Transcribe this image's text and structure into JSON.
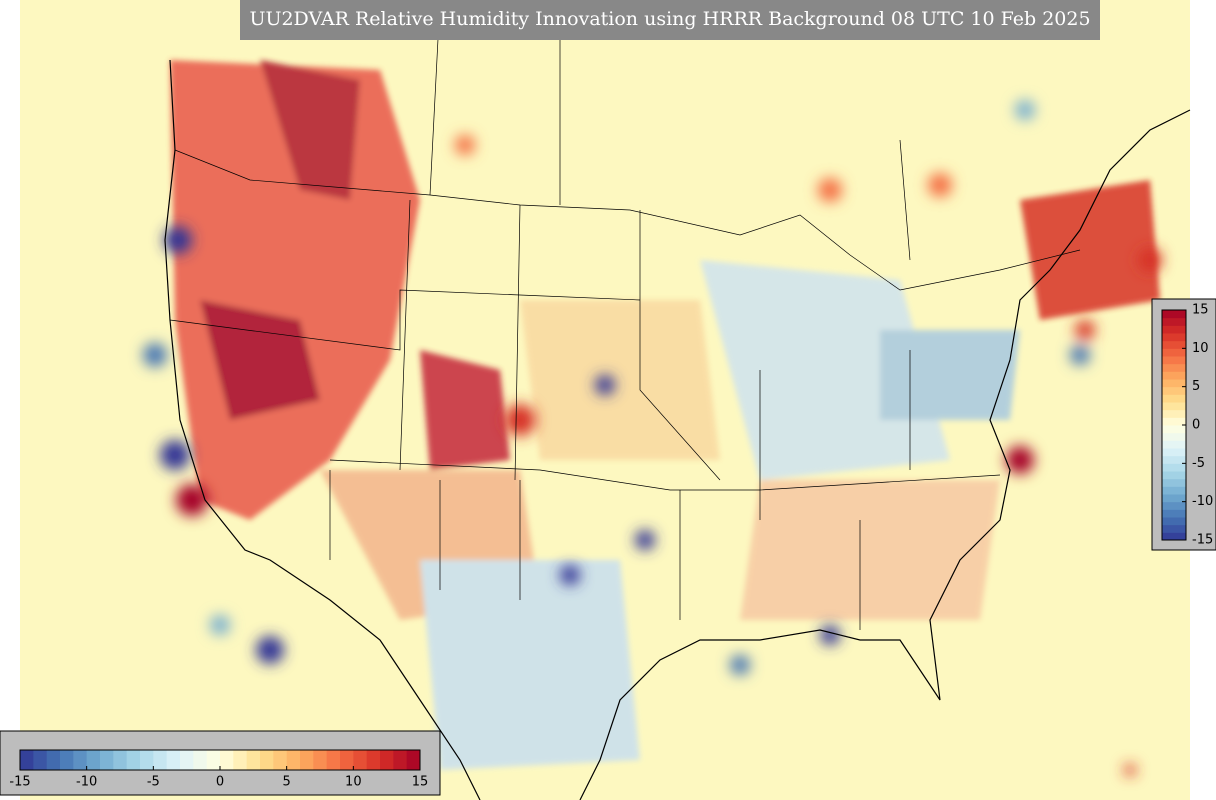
{
  "map": {
    "title": "UU2DVAR Relative Humidity Innovation using HRRR Background 08 UTC 10 Feb 2025",
    "colorbars": [
      {
        "orientation": "horizontal",
        "lim": [
          -15,
          15
        ],
        "ticks": [
          -15,
          -10,
          -5,
          0,
          5,
          10,
          15
        ],
        "levels": 30
      },
      {
        "orientation": "vertical",
        "lim": [
          -15,
          15
        ],
        "ticks": [
          -15,
          -10,
          -5,
          0,
          5,
          10,
          15
        ],
        "levels": 30
      }
    ],
    "colors": [
      "#313695",
      "#4575b4",
      "#74add1",
      "#abd9e9",
      "#e0f3f8",
      "#ffffe0",
      "#fee090",
      "#fdae61",
      "#f46d43",
      "#d73027",
      "#a50026"
    ]
  }
}
